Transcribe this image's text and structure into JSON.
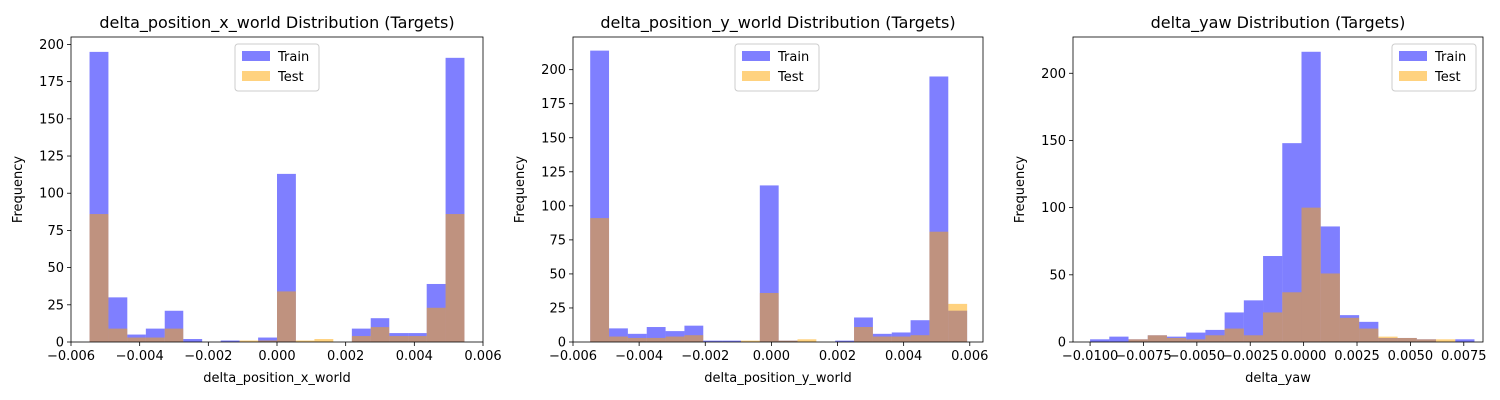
{
  "legend_labels": {
    "train": "Train",
    "test": "Test"
  },
  "colors": {
    "train": "#0000ff",
    "test": "#ffa500",
    "train_alpha": 0.5,
    "test_alpha": 0.5
  },
  "chart_data": [
    {
      "type": "bar",
      "title": "delta_position_x_world Distribution (Targets)",
      "xlabel": "delta_position_x_world",
      "ylabel": "Frequency",
      "xlim": [
        -0.006,
        0.006
      ],
      "ylim": [
        0,
        205
      ],
      "xticks": [
        -0.006,
        -0.004,
        -0.002,
        0.0,
        0.002,
        0.004,
        0.006
      ],
      "xtick_labels": [
        "−0.006",
        "−0.004",
        "−0.002",
        "0.000",
        "0.002",
        "0.004",
        "0.006"
      ],
      "yticks": [
        0,
        25,
        50,
        75,
        100,
        125,
        150,
        175,
        200
      ],
      "ytick_labels": [
        "0",
        "25",
        "50",
        "75",
        "100",
        "125",
        "150",
        "175",
        "200"
      ],
      "legend_position": "upper center",
      "series": [
        {
          "name": "Train",
          "bins": [
            [
              -0.00546,
              -0.00491,
              195
            ],
            [
              -0.00491,
              -0.00436,
              30
            ],
            [
              -0.00436,
              -0.00382,
              5
            ],
            [
              -0.00382,
              -0.00327,
              9
            ],
            [
              -0.00327,
              -0.00273,
              21
            ],
            [
              -0.00273,
              -0.00218,
              2
            ],
            [
              -0.00164,
              -0.00109,
              1
            ],
            [
              -0.00055,
              0.0,
              3
            ],
            [
              0.0,
              0.00055,
              113
            ],
            [
              0.00218,
              0.00273,
              9
            ],
            [
              0.00273,
              0.00327,
              16
            ],
            [
              0.00327,
              0.00382,
              6
            ],
            [
              0.00382,
              0.00436,
              6
            ],
            [
              0.00436,
              0.00491,
              39
            ],
            [
              0.00491,
              0.00546,
              191
            ]
          ]
        },
        {
          "name": "Test",
          "bins": [
            [
              -0.00546,
              -0.00491,
              86
            ],
            [
              -0.00491,
              -0.00436,
              9
            ],
            [
              -0.00436,
              -0.00382,
              3
            ],
            [
              -0.00382,
              -0.00327,
              3
            ],
            [
              -0.00327,
              -0.00273,
              9
            ],
            [
              -0.00109,
              -0.00055,
              1
            ],
            [
              -0.00055,
              0.0,
              1
            ],
            [
              0.0,
              0.00055,
              34
            ],
            [
              0.00055,
              0.00109,
              1
            ],
            [
              0.00109,
              0.00164,
              2
            ],
            [
              0.00218,
              0.00273,
              4
            ],
            [
              0.00273,
              0.00327,
              10
            ],
            [
              0.00327,
              0.00382,
              4
            ],
            [
              0.00382,
              0.00436,
              4
            ],
            [
              0.00436,
              0.00491,
              23
            ],
            [
              0.00491,
              0.00546,
              86
            ]
          ]
        }
      ]
    },
    {
      "type": "bar",
      "title": "delta_position_y_world Distribution (Targets)",
      "xlabel": "delta_position_y_world",
      "ylabel": "Frequency",
      "xlim": [
        -0.006,
        0.0064
      ],
      "ylim": [
        0,
        224
      ],
      "xticks": [
        -0.006,
        -0.004,
        -0.002,
        0.0,
        0.002,
        0.004,
        0.006
      ],
      "xtick_labels": [
        "−0.006",
        "−0.004",
        "−0.002",
        "0.000",
        "0.002",
        "0.004",
        "0.006"
      ],
      "yticks": [
        0,
        25,
        50,
        75,
        100,
        125,
        150,
        175,
        200
      ],
      "ytick_labels": [
        "0",
        "25",
        "50",
        "75",
        "100",
        "125",
        "150",
        "175",
        "200"
      ],
      "legend_position": "upper center",
      "series": [
        {
          "name": "Train",
          "bins": [
            [
              -0.00548,
              -0.00491,
              214
            ],
            [
              -0.00491,
              -0.00434,
              10
            ],
            [
              -0.00434,
              -0.00377,
              6
            ],
            [
              -0.00377,
              -0.0032,
              11
            ],
            [
              -0.0032,
              -0.00263,
              8
            ],
            [
              -0.00263,
              -0.00206,
              12
            ],
            [
              -0.00206,
              -0.00149,
              1
            ],
            [
              -0.00149,
              -0.00092,
              1
            ],
            [
              -0.00035,
              0.00022,
              115
            ],
            [
              0.00022,
              0.00079,
              1
            ],
            [
              0.00193,
              0.0025,
              1
            ],
            [
              0.0025,
              0.00307,
              18
            ],
            [
              0.00307,
              0.00364,
              6
            ],
            [
              0.00364,
              0.00421,
              7
            ],
            [
              0.00421,
              0.00478,
              16
            ],
            [
              0.00478,
              0.00535,
              195
            ],
            [
              0.00535,
              0.00592,
              23
            ]
          ]
        },
        {
          "name": "Test",
          "bins": [
            [
              -0.00548,
              -0.00491,
              91
            ],
            [
              -0.00491,
              -0.00434,
              4
            ],
            [
              -0.00434,
              -0.00377,
              3
            ],
            [
              -0.00377,
              -0.0032,
              3
            ],
            [
              -0.0032,
              -0.00263,
              4
            ],
            [
              -0.00263,
              -0.00206,
              5
            ],
            [
              -0.00092,
              -0.00035,
              1
            ],
            [
              -0.00035,
              0.00022,
              36
            ],
            [
              0.00022,
              0.00079,
              1
            ],
            [
              0.00079,
              0.00136,
              2
            ],
            [
              0.0025,
              0.00307,
              11
            ],
            [
              0.00307,
              0.00364,
              4
            ],
            [
              0.00364,
              0.00421,
              4
            ],
            [
              0.00421,
              0.00478,
              5
            ],
            [
              0.00478,
              0.00535,
              81
            ],
            [
              0.00535,
              0.00592,
              28
            ]
          ]
        }
      ]
    },
    {
      "type": "bar",
      "title": "delta_yaw Distribution (Targets)",
      "xlabel": "delta_yaw",
      "ylabel": "Frequency",
      "xlim": [
        -0.0108,
        0.0084
      ],
      "ylim": [
        0,
        227
      ],
      "xticks": [
        -0.01,
        -0.0075,
        -0.005,
        -0.0025,
        0.0,
        0.0025,
        0.005,
        0.0075
      ],
      "xtick_labels": [
        "−0.0100",
        "−0.0075",
        "−0.0050",
        "−0.0025",
        "0.0000",
        "0.0025",
        "0.0050",
        "0.0075"
      ],
      "yticks": [
        0,
        50,
        100,
        150,
        200
      ],
      "ytick_labels": [
        "0",
        "50",
        "100",
        "150",
        "200"
      ],
      "legend_position": "upper right",
      "series": [
        {
          "name": "Train",
          "bins": [
            [
              -0.01,
              -0.0091,
              2
            ],
            [
              -0.0091,
              -0.0082,
              4
            ],
            [
              -0.0082,
              -0.0073,
              2
            ],
            [
              -0.0073,
              -0.0064,
              5
            ],
            [
              -0.0064,
              -0.0055,
              4
            ],
            [
              -0.0055,
              -0.0046,
              7
            ],
            [
              -0.0046,
              -0.0037,
              9
            ],
            [
              -0.0037,
              -0.0028,
              22
            ],
            [
              -0.0028,
              -0.0019,
              31
            ],
            [
              -0.0019,
              -0.001,
              64
            ],
            [
              -0.001,
              -0.0001,
              148
            ],
            [
              -0.0001,
              0.0008,
              216
            ],
            [
              0.0008,
              0.0017,
              86
            ],
            [
              0.0017,
              0.0026,
              20
            ],
            [
              0.0026,
              0.0035,
              15
            ],
            [
              0.0035,
              0.0044,
              3
            ],
            [
              0.0044,
              0.0053,
              3
            ],
            [
              0.0053,
              0.0062,
              2
            ],
            [
              0.0071,
              0.008,
              2
            ]
          ]
        },
        {
          "name": "Test",
          "bins": [
            [
              -0.0082,
              -0.0073,
              2
            ],
            [
              -0.0073,
              -0.0064,
              5
            ],
            [
              -0.0064,
              -0.0055,
              3
            ],
            [
              -0.0055,
              -0.0046,
              2
            ],
            [
              -0.0046,
              -0.0037,
              5
            ],
            [
              -0.0037,
              -0.0028,
              10
            ],
            [
              -0.0028,
              -0.0019,
              5
            ],
            [
              -0.0019,
              -0.001,
              22
            ],
            [
              -0.001,
              -0.0001,
              37
            ],
            [
              -0.0001,
              0.0008,
              100
            ],
            [
              0.0008,
              0.0017,
              51
            ],
            [
              0.0017,
              0.0026,
              18
            ],
            [
              0.0026,
              0.0035,
              10
            ],
            [
              0.0035,
              0.0044,
              4
            ],
            [
              0.0044,
              0.0053,
              3
            ],
            [
              0.0053,
              0.0062,
              2
            ],
            [
              0.0062,
              0.0071,
              2
            ]
          ]
        }
      ]
    }
  ]
}
